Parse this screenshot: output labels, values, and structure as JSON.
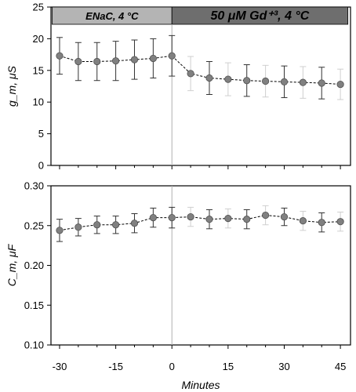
{
  "chart_data": [
    {
      "type": "line",
      "ylabel": "g_m, μS",
      "ylim": [
        0,
        25
      ],
      "yticks": [
        0,
        5,
        10,
        15,
        20,
        25
      ],
      "x": [
        -30,
        -25,
        -20,
        -15,
        -10,
        -5,
        0,
        5,
        10,
        15,
        20,
        25,
        30,
        35,
        40,
        45
      ],
      "series": [
        {
          "values": [
            17.3,
            16.4,
            16.4,
            16.5,
            16.7,
            16.9,
            17.3,
            14.5,
            13.8,
            13.6,
            13.4,
            13.3,
            13.2,
            13.1,
            13.0,
            12.8
          ],
          "error": [
            2.9,
            3.0,
            3.0,
            3.1,
            3.1,
            3.1,
            3.2,
            2.7,
            2.6,
            2.6,
            2.5,
            2.5,
            2.5,
            2.5,
            2.5,
            2.4
          ]
        }
      ],
      "annotations": [
        {
          "text": "ENaC, 4 °C",
          "x_range": [
            -32,
            0
          ],
          "color": "#b4b4b4"
        },
        {
          "text": "50 μM Gd⁺³, 4 °C",
          "x_range": [
            0,
            47
          ],
          "color": "#6e6e6e"
        }
      ],
      "vertical_marker_x": 0,
      "grid": false
    },
    {
      "type": "line",
      "ylabel": "C_m, μF",
      "ylim": [
        0.1,
        0.3
      ],
      "yticks": [
        0.1,
        0.15,
        0.2,
        0.25,
        0.3
      ],
      "x": [
        -30,
        -25,
        -20,
        -15,
        -10,
        -5,
        0,
        5,
        10,
        15,
        20,
        25,
        30,
        35,
        40,
        45
      ],
      "xlabel": "Minutes",
      "xticks": [
        -30,
        -15,
        0,
        15,
        30,
        45
      ],
      "series": [
        {
          "values": [
            0.244,
            0.248,
            0.251,
            0.251,
            0.253,
            0.26,
            0.26,
            0.261,
            0.258,
            0.259,
            0.258,
            0.263,
            0.261,
            0.256,
            0.254,
            0.255
          ],
          "error": [
            0.014,
            0.011,
            0.011,
            0.011,
            0.012,
            0.012,
            0.013,
            0.012,
            0.012,
            0.012,
            0.012,
            0.012,
            0.011,
            0.012,
            0.012,
            0.012
          ]
        }
      ],
      "vertical_marker_x": 0,
      "grid": false
    }
  ],
  "colors": {
    "marker_fill": "#808080",
    "marker_edge": "#505050",
    "error_bar_before": "#333333",
    "error_bar_after": "#333333",
    "error_bar_light": "#cfcfcf",
    "vline": "#b0b0b0"
  }
}
